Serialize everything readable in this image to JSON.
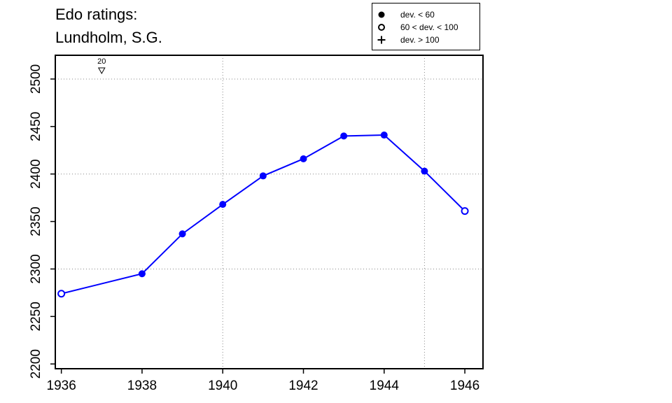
{
  "title_lines": [
    "Edo ratings:",
    "Lundholm, S.G."
  ],
  "legend": [
    {
      "symbol": "filled-circle",
      "label": "dev. < 60"
    },
    {
      "symbol": "open-circle",
      "label": "60 < dev. < 100"
    },
    {
      "symbol": "plus",
      "label": "dev. > 100"
    }
  ],
  "colors": {
    "series": "#0000ff",
    "axis": "#000000",
    "grid": "#888888"
  },
  "chart_data": {
    "type": "line",
    "title": "Edo ratings: Lundholm, S.G.",
    "xlabel": "",
    "ylabel": "",
    "xlim": [
      1935.85,
      1946.45
    ],
    "ylim": [
      2195,
      2525
    ],
    "xticks": [
      1936,
      1938,
      1940,
      1942,
      1944,
      1946
    ],
    "yticks": [
      2200,
      2250,
      2300,
      2350,
      2400,
      2450,
      2500
    ],
    "grid": "dotted",
    "grid_x": [
      1940,
      1945
    ],
    "grid_y": [
      2300,
      2400,
      2500
    ],
    "legend_position": "top-right",
    "series": [
      {
        "points": [
          {
            "x": 1936,
            "y": 2274,
            "marker": "open-circle"
          },
          {
            "x": 1938,
            "y": 2295,
            "marker": "filled-circle"
          },
          {
            "x": 1939,
            "y": 2337,
            "marker": "filled-circle"
          },
          {
            "x": 1940,
            "y": 2368,
            "marker": "filled-circle"
          },
          {
            "x": 1941,
            "y": 2398,
            "marker": "filled-circle"
          },
          {
            "x": 1942,
            "y": 2416,
            "marker": "filled-circle"
          },
          {
            "x": 1943,
            "y": 2440,
            "marker": "filled-circle"
          },
          {
            "x": 1944,
            "y": 2441,
            "marker": "filled-circle"
          },
          {
            "x": 1945,
            "y": 2403,
            "marker": "filled-circle"
          },
          {
            "x": 1946,
            "y": 2361,
            "marker": "open-circle"
          }
        ]
      }
    ],
    "annotations": [
      {
        "x": 1937,
        "label": "20",
        "symbol": "down-triangle"
      }
    ]
  }
}
